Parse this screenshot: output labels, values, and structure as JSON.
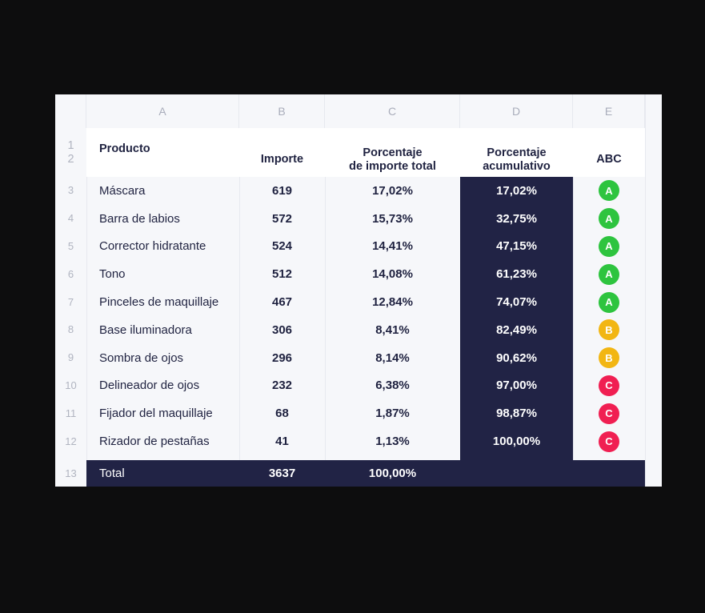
{
  "columns": [
    "A",
    "B",
    "C",
    "D",
    "E"
  ],
  "header_row_numbers": [
    "1",
    "2"
  ],
  "headers": {
    "producto": "Producto",
    "importe": "Importe",
    "porcentaje_line1": "Porcentaje",
    "porcentaje_line2": "de importe total",
    "acumulativo_line1": "Porcentaje",
    "acumulativo_line2": "acumulativo",
    "abc": "ABC"
  },
  "rows": [
    {
      "num": "3",
      "producto": "Máscara",
      "importe": "619",
      "porcentaje": "17,02%",
      "acumulativo": "17,02%",
      "abc": "A"
    },
    {
      "num": "4",
      "producto": "Barra de labios",
      "importe": "572",
      "porcentaje": "15,73%",
      "acumulativo": "32,75%",
      "abc": "A"
    },
    {
      "num": "5",
      "producto": "Corrector hidratante",
      "importe": "524",
      "porcentaje": "14,41%",
      "acumulativo": "47,15%",
      "abc": "A"
    },
    {
      "num": "6",
      "producto": "Tono",
      "importe": "512",
      "porcentaje": "14,08%",
      "acumulativo": "61,23%",
      "abc": "A"
    },
    {
      "num": "7",
      "producto": "Pinceles de maquillaje",
      "importe": "467",
      "porcentaje": "12,84%",
      "acumulativo": "74,07%",
      "abc": "A"
    },
    {
      "num": "8",
      "producto": "Base iluminadora",
      "importe": "306",
      "porcentaje": "8,41%",
      "acumulativo": "82,49%",
      "abc": "B"
    },
    {
      "num": "9",
      "producto": "Sombra de ojos",
      "importe": "296",
      "porcentaje": "8,14%",
      "acumulativo": "90,62%",
      "abc": "B"
    },
    {
      "num": "10",
      "producto": "Delineador de ojos",
      "importe": "232",
      "porcentaje": "6,38%",
      "acumulativo": "97,00%",
      "abc": "C"
    },
    {
      "num": "11",
      "producto": "Fijador del maquillaje",
      "importe": "68",
      "porcentaje": "1,87%",
      "acumulativo": "98,87%",
      "abc": "C"
    },
    {
      "num": "12",
      "producto": "Rizador de pestañas",
      "importe": "41",
      "porcentaje": "1,13%",
      "acumulativo": "100,00%",
      "abc": "C"
    }
  ],
  "total": {
    "num": "13",
    "label": "Total",
    "importe": "3637",
    "porcentaje": "100,00%"
  },
  "badge_colors": {
    "A": "#2ec43f",
    "B": "#f2b613",
    "C": "#f01f52"
  }
}
